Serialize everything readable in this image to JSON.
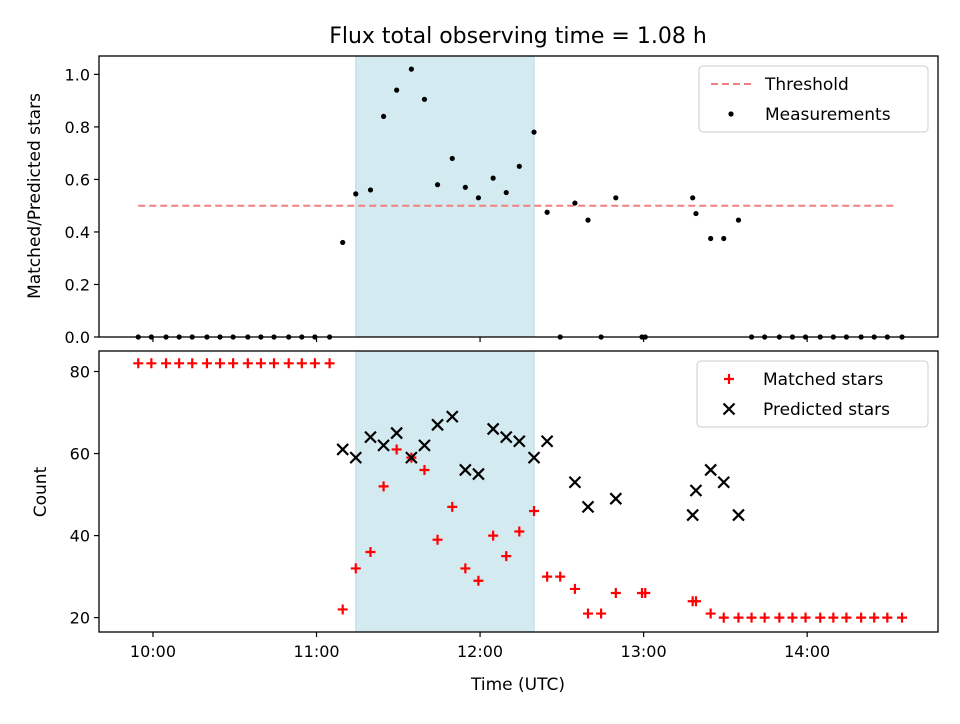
{
  "figure": {
    "title": "Flux total observing time = 1.08 h"
  },
  "chart_data": [
    {
      "type": "scatter",
      "ylabel": "Matched/Predicted stars",
      "xlim": [
        9.67,
        14.8
      ],
      "ylim": [
        0,
        1.07
      ],
      "yticks": [
        0.0,
        0.2,
        0.4,
        0.6,
        0.8,
        1.0
      ],
      "ytick_labels": [
        "0.0",
        "0.2",
        "0.4",
        "0.6",
        "0.8",
        "1.0"
      ],
      "shaded_span": [
        11.24,
        12.33
      ],
      "shaded_color": "#d3eaf0",
      "threshold": {
        "name": "Threshold",
        "y": 0.5,
        "x_range": [
          9.91,
          14.55
        ],
        "color": "#f08080"
      },
      "legend": {
        "location": "upper right",
        "entries": [
          "Threshold",
          "Measurements"
        ]
      },
      "series": [
        {
          "name": "Measurements",
          "marker": "dot",
          "color": "#000000",
          "points": [
            [
              9.91,
              0
            ],
            [
              9.99,
              0
            ],
            [
              10.08,
              0
            ],
            [
              10.16,
              0
            ],
            [
              10.24,
              0
            ],
            [
              10.33,
              0
            ],
            [
              10.41,
              0
            ],
            [
              10.49,
              0
            ],
            [
              10.58,
              0
            ],
            [
              10.66,
              0
            ],
            [
              10.74,
              0
            ],
            [
              10.83,
              0
            ],
            [
              10.91,
              0
            ],
            [
              10.99,
              0
            ],
            [
              11.08,
              0
            ],
            [
              11.16,
              0.36
            ],
            [
              11.24,
              0.545
            ],
            [
              11.33,
              0.56
            ],
            [
              11.41,
              0.84
            ],
            [
              11.49,
              0.94
            ],
            [
              11.58,
              1.02
            ],
            [
              11.66,
              0.905
            ],
            [
              11.74,
              0.58
            ],
            [
              11.83,
              0.68
            ],
            [
              11.91,
              0.57
            ],
            [
              11.99,
              0.53
            ],
            [
              12.08,
              0.605
            ],
            [
              12.16,
              0.55
            ],
            [
              12.24,
              0.65
            ],
            [
              12.33,
              0.78
            ],
            [
              12.41,
              0.475
            ],
            [
              12.49,
              0
            ],
            [
              12.58,
              0.51
            ],
            [
              12.66,
              0.445
            ],
            [
              12.74,
              0
            ],
            [
              12.83,
              0.53
            ],
            [
              12.99,
              0
            ],
            [
              13.01,
              0
            ],
            [
              13.3,
              0.53
            ],
            [
              13.32,
              0.47
            ],
            [
              13.41,
              0.375
            ],
            [
              13.49,
              0.375
            ],
            [
              13.58,
              0.445
            ],
            [
              13.66,
              0
            ],
            [
              13.74,
              0
            ],
            [
              13.83,
              0
            ],
            [
              13.91,
              0
            ],
            [
              13.99,
              0
            ],
            [
              14.08,
              0
            ],
            [
              14.16,
              0
            ],
            [
              14.24,
              0
            ],
            [
              14.33,
              0
            ],
            [
              14.41,
              0
            ],
            [
              14.49,
              0
            ],
            [
              14.58,
              0
            ]
          ]
        }
      ]
    },
    {
      "type": "scatter",
      "ylabel": "Count",
      "xlabel": "Time (UTC)",
      "xlim": [
        9.67,
        14.8
      ],
      "ylim": [
        16.5,
        85
      ],
      "xticks": [
        10,
        11,
        12,
        13,
        14
      ],
      "xtick_labels": [
        "10:00",
        "11:00",
        "12:00",
        "13:00",
        "14:00"
      ],
      "yticks": [
        20,
        40,
        60,
        80
      ],
      "ytick_labels": [
        "20",
        "40",
        "60",
        "80"
      ],
      "shaded_span": [
        11.24,
        12.33
      ],
      "shaded_color": "#d3eaf0",
      "legend": {
        "location": "upper right",
        "entries": [
          "Matched stars",
          "Predicted stars"
        ]
      },
      "series": [
        {
          "name": "Matched stars",
          "marker": "plus",
          "color": "#ff0000",
          "points": [
            [
              9.91,
              82
            ],
            [
              9.99,
              82
            ],
            [
              10.08,
              82
            ],
            [
              10.16,
              82
            ],
            [
              10.24,
              82
            ],
            [
              10.33,
              82
            ],
            [
              10.41,
              82
            ],
            [
              10.49,
              82
            ],
            [
              10.58,
              82
            ],
            [
              10.66,
              82
            ],
            [
              10.74,
              82
            ],
            [
              10.83,
              82
            ],
            [
              10.91,
              82
            ],
            [
              10.99,
              82
            ],
            [
              11.08,
              82
            ],
            [
              11.16,
              22
            ],
            [
              11.24,
              32
            ],
            [
              11.33,
              36
            ],
            [
              11.41,
              52
            ],
            [
              11.49,
              61
            ],
            [
              11.58,
              59
            ],
            [
              11.66,
              56
            ],
            [
              11.74,
              39
            ],
            [
              11.83,
              47
            ],
            [
              11.91,
              32
            ],
            [
              11.99,
              29
            ],
            [
              12.08,
              40
            ],
            [
              12.16,
              35
            ],
            [
              12.24,
              41
            ],
            [
              12.33,
              46
            ],
            [
              12.41,
              30
            ],
            [
              12.49,
              30
            ],
            [
              12.58,
              27
            ],
            [
              12.66,
              21
            ],
            [
              12.74,
              21
            ],
            [
              12.83,
              26
            ],
            [
              12.99,
              26
            ],
            [
              13.01,
              26
            ],
            [
              13.3,
              24
            ],
            [
              13.32,
              24
            ],
            [
              13.41,
              21
            ],
            [
              13.49,
              20
            ],
            [
              13.58,
              20
            ],
            [
              13.66,
              20
            ],
            [
              13.74,
              20
            ],
            [
              13.83,
              20
            ],
            [
              13.91,
              20
            ],
            [
              13.99,
              20
            ],
            [
              14.08,
              20
            ],
            [
              14.16,
              20
            ],
            [
              14.24,
              20
            ],
            [
              14.33,
              20
            ],
            [
              14.41,
              20
            ],
            [
              14.49,
              20
            ],
            [
              14.58,
              20
            ]
          ]
        },
        {
          "name": "Predicted stars",
          "marker": "x",
          "color": "#000000",
          "points": [
            [
              11.16,
              61
            ],
            [
              11.24,
              59
            ],
            [
              11.33,
              64
            ],
            [
              11.41,
              62
            ],
            [
              11.49,
              65
            ],
            [
              11.58,
              59
            ],
            [
              11.66,
              62
            ],
            [
              11.74,
              67
            ],
            [
              11.83,
              69
            ],
            [
              11.91,
              56
            ],
            [
              11.99,
              55
            ],
            [
              12.08,
              66
            ],
            [
              12.16,
              64
            ],
            [
              12.24,
              63
            ],
            [
              12.33,
              59
            ],
            [
              12.41,
              63
            ],
            [
              12.58,
              53
            ],
            [
              12.66,
              47
            ],
            [
              12.83,
              49
            ],
            [
              13.3,
              45
            ],
            [
              13.32,
              51
            ],
            [
              13.41,
              56
            ],
            [
              13.49,
              53
            ],
            [
              13.58,
              45
            ]
          ]
        }
      ]
    }
  ]
}
